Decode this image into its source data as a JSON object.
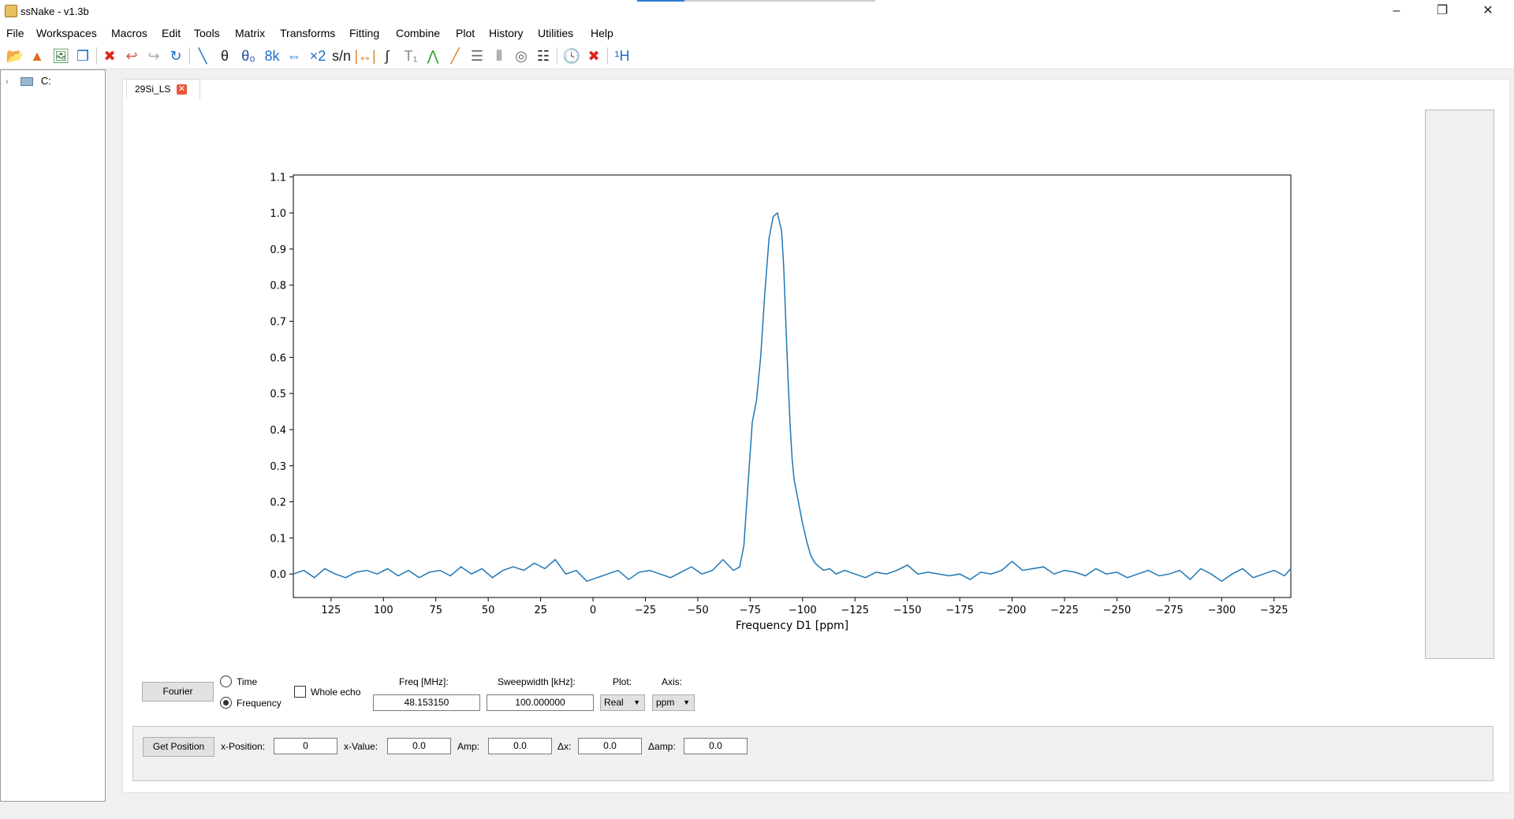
{
  "window": {
    "title": "ssNake - v1.3b",
    "progress_fraction": 0.2,
    "controls": [
      "–",
      "❐",
      "✕"
    ]
  },
  "menu": [
    "File",
    "Workspaces",
    "Macros",
    "Edit",
    "Tools",
    "Matrix",
    "Transforms",
    "Fitting",
    "Combine",
    "Plot",
    "History",
    "Utilities",
    "Help"
  ],
  "toolbar": {
    "items": [
      {
        "name": "open-icon",
        "glyph": "📂",
        "color": "#1b6fc7"
      },
      {
        "name": "matlab-export-icon",
        "glyph": "▲",
        "color": "#e06a1a"
      },
      {
        "name": "save-figure-icon",
        "glyph": "🖼",
        "color": "#3b7d3b"
      },
      {
        "name": "duplicate-icon",
        "glyph": "❐",
        "color": "#1b6fc7"
      },
      {
        "name": "delete-icon",
        "glyph": "✖",
        "color": "#e0241b"
      },
      {
        "name": "undo-icon",
        "glyph": "↩",
        "color": "#d9534f"
      },
      {
        "name": "redo-icon",
        "glyph": "↪",
        "color": "#aaaaaa"
      },
      {
        "name": "reload-icon",
        "glyph": "↻",
        "color": "#1b6fc7"
      },
      {
        "name": "baseline-icon",
        "glyph": "╲",
        "color": "#1b6fc7"
      },
      {
        "name": "phase-icon",
        "glyph": "θ",
        "color": "#222222"
      },
      {
        "name": "phase0-icon",
        "glyph": "θ₀",
        "color": "#1b4fa0"
      },
      {
        "name": "size-icon",
        "glyph": "8k",
        "color": "#1b6fc7"
      },
      {
        "name": "swap-icon",
        "glyph": "⇔",
        "color": "#1b6fc7"
      },
      {
        "name": "multiply-icon",
        "glyph": "×2",
        "color": "#1b6fc7"
      },
      {
        "name": "snr-icon",
        "glyph": "s/n",
        "color": "#222222"
      },
      {
        "name": "fwhm-icon",
        "glyph": "|↔|",
        "color": "#e07b1a"
      },
      {
        "name": "integral-icon",
        "glyph": "∫",
        "color": "#222222"
      },
      {
        "name": "relaxation-icon",
        "glyph": "T₁",
        "color": "#888888"
      },
      {
        "name": "peak-fit-icon",
        "glyph": "⋀",
        "color": "#2aa02a"
      },
      {
        "name": "line-icon",
        "glyph": "╱",
        "color": "#e07b1a"
      },
      {
        "name": "stack-icon",
        "glyph": "☰",
        "color": "#666666"
      },
      {
        "name": "array-icon",
        "glyph": "⦀",
        "color": "#666666"
      },
      {
        "name": "contour-icon",
        "glyph": "◎",
        "color": "#666666"
      },
      {
        "name": "list-icon",
        "glyph": "☷",
        "color": "#222222"
      },
      {
        "name": "history-icon",
        "glyph": "🕓",
        "color": "#222222"
      },
      {
        "name": "close-icon",
        "glyph": "✖",
        "color": "#e0241b"
      },
      {
        "name": "nucleus-icon",
        "glyph": "¹H",
        "color": "#1b6fc7"
      }
    ]
  },
  "tree": {
    "root": "C:"
  },
  "tab": {
    "label": "29Si_LS",
    "close": "✕"
  },
  "chart_data": {
    "type": "line",
    "title": "",
    "xlabel": "Frequency D1 [ppm]",
    "ylabel": "",
    "xlim": [
      143,
      -333
    ],
    "ylim": [
      -0.065,
      1.105
    ],
    "xticks": [
      125,
      100,
      75,
      50,
      25,
      0,
      -25,
      -50,
      -75,
      -100,
      -125,
      -150,
      -175,
      -200,
      -225,
      -250,
      -275,
      -300,
      -325
    ],
    "xtick_labels": [
      "125",
      "100",
      "75",
      "50",
      "25",
      "0",
      "−25",
      "−50",
      "−75",
      "−100",
      "−125",
      "−150",
      "−175",
      "−200",
      "−225",
      "−250",
      "−275",
      "−300",
      "−325"
    ],
    "yticks": [
      0.0,
      0.1,
      0.2,
      0.3,
      0.4,
      0.5,
      0.6,
      0.7,
      0.8,
      0.9,
      1.0,
      1.1
    ],
    "ytick_labels": [
      "0.0",
      "0.1",
      "0.2",
      "0.3",
      "0.4",
      "0.5",
      "0.6",
      "0.7",
      "0.8",
      "0.9",
      "1.0",
      "1.1"
    ],
    "color": "#1f77b4",
    "grid": false,
    "series": [
      {
        "x": [
          143,
          138,
          133,
          128,
          123,
          118,
          113,
          108,
          103,
          98,
          93,
          88,
          83,
          78,
          73,
          68,
          63,
          58,
          53,
          48,
          43,
          38,
          33,
          28,
          23,
          18,
          13,
          8,
          3,
          -2,
          -7,
          -12,
          -17,
          -22,
          -27,
          -32,
          -37,
          -42,
          -47,
          -52,
          -57,
          -62,
          -67,
          -70,
          -72,
          -74,
          -76,
          -78,
          -80,
          -82,
          -84,
          -86,
          -88,
          -90,
          -91,
          -92,
          -93,
          -94,
          -95,
          -96,
          -98,
          -100,
          -102,
          -104,
          -106,
          -108,
          -110,
          -113,
          -116,
          -120,
          -125,
          -130,
          -135,
          -140,
          -145,
          -150,
          -155,
          -160,
          -165,
          -170,
          -175,
          -180,
          -185,
          -190,
          -195,
          -200,
          -205,
          -210,
          -215,
          -220,
          -225,
          -230,
          -235,
          -240,
          -245,
          -250,
          -255,
          -260,
          -265,
          -270,
          -275,
          -280,
          -285,
          -290,
          -295,
          -300,
          -305,
          -310,
          -315,
          -320,
          -325,
          -330,
          -333
        ],
        "y": [
          0.0,
          0.01,
          -0.01,
          0.015,
          0.0,
          -0.01,
          0.005,
          0.01,
          0.0,
          0.015,
          -0.005,
          0.01,
          -0.01,
          0.005,
          0.01,
          -0.005,
          0.02,
          0.0,
          0.015,
          -0.01,
          0.01,
          0.02,
          0.01,
          0.03,
          0.015,
          0.04,
          0.0,
          0.01,
          -0.02,
          -0.01,
          0.0,
          0.01,
          -0.015,
          0.005,
          0.01,
          0.0,
          -0.01,
          0.005,
          0.02,
          0.0,
          0.01,
          0.04,
          0.01,
          0.02,
          0.08,
          0.25,
          0.42,
          0.48,
          0.6,
          0.78,
          0.93,
          0.99,
          1.0,
          0.95,
          0.85,
          0.7,
          0.55,
          0.42,
          0.32,
          0.26,
          0.2,
          0.14,
          0.09,
          0.05,
          0.03,
          0.02,
          0.01,
          0.015,
          0.0,
          0.01,
          0.0,
          -0.01,
          0.005,
          0.0,
          0.01,
          0.025,
          0.0,
          0.005,
          0.0,
          -0.005,
          0.0,
          -0.015,
          0.005,
          0.0,
          0.01,
          0.035,
          0.01,
          0.015,
          0.02,
          0.0,
          0.01,
          0.005,
          -0.005,
          0.015,
          0.0,
          0.005,
          -0.01,
          0.0,
          0.01,
          -0.005,
          0.0,
          0.01,
          -0.015,
          0.015,
          0.0,
          -0.02,
          0.0,
          0.015,
          -0.01,
          0.0,
          0.01,
          -0.005,
          0.015
        ]
      }
    ]
  },
  "controls": {
    "fourier_button": "Fourier",
    "time_label": "Time",
    "frequency_label": "Frequency",
    "whole_echo_label": "Whole echo",
    "freq_header": "Freq [MHz]:",
    "freq_value": "48.153150",
    "sw_header": "Sweepwidth [kHz]:",
    "sw_value": "100.000000",
    "plot_header": "Plot:",
    "plot_value": "Real",
    "axis_header": "Axis:",
    "axis_value": "ppm",
    "time_selected": false,
    "frequency_selected": true,
    "whole_echo_checked": false
  },
  "position": {
    "get_button": "Get Position",
    "x_position_label": "x-Position:",
    "x_position_value": "0",
    "x_value_label": "x-Value:",
    "x_value_value": "0.0",
    "amp_label": "Amp:",
    "amp_value": "0.0",
    "dx_label": "Δx:",
    "dx_value": "0.0",
    "damp_label": "Δamp:",
    "damp_value": "0.0"
  }
}
